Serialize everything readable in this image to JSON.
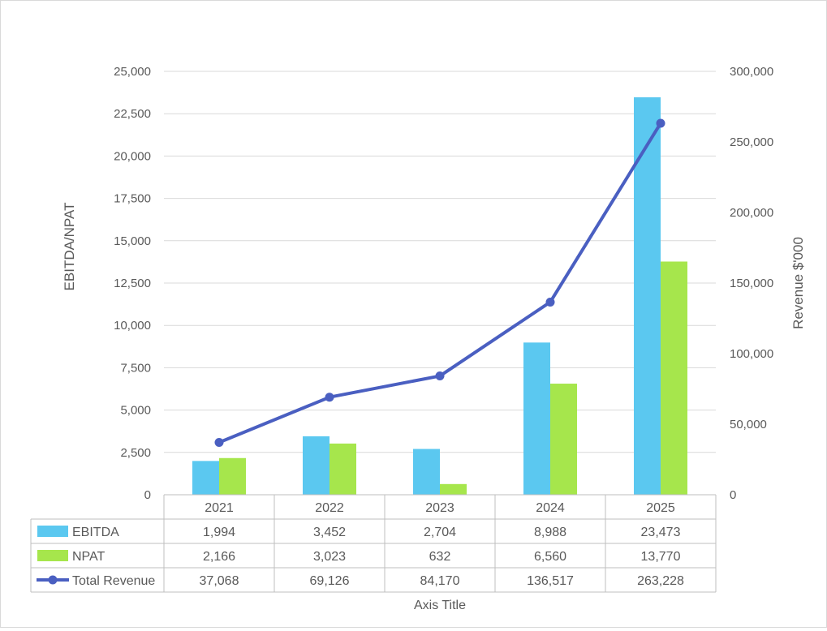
{
  "chart_data": {
    "type": "bar",
    "categories": [
      "2021",
      "2022",
      "2023",
      "2024",
      "2025"
    ],
    "series": [
      {
        "name": "EBITDA",
        "kind": "bar",
        "axis": "left",
        "color": "#5bc8f0",
        "values": [
          1994,
          3452,
          2704,
          8988,
          23473
        ],
        "labels": [
          "1,994",
          "3,452",
          "2,704",
          "8,988",
          "23,473"
        ]
      },
      {
        "name": "NPAT",
        "kind": "bar",
        "axis": "left",
        "color": "#a6e64c",
        "values": [
          2166,
          3023,
          632,
          6560,
          13770
        ],
        "labels": [
          "2,166",
          "3,023",
          "632",
          "6,560",
          "13,770"
        ]
      },
      {
        "name": "Total Revenue",
        "kind": "line",
        "axis": "right",
        "color": "#4a5fc1",
        "values": [
          37068,
          69126,
          84170,
          136517,
          263228
        ],
        "labels": [
          "37,068",
          "69,126",
          "84,170",
          "136,517",
          "263,228"
        ]
      }
    ],
    "ylabel": "EBITDA/NPAT",
    "y2label": "Revenue $'000",
    "xlabel": "Axis Title",
    "ylim": [
      0,
      25000
    ],
    "y2lim": [
      0,
      300000
    ],
    "yticks": [
      "0",
      "2,500",
      "5,000",
      "7,500",
      "10,000",
      "12,500",
      "15,000",
      "17,500",
      "20,000",
      "22,500",
      "25,000"
    ],
    "y2ticks": [
      "0",
      "50,000",
      "100,000",
      "150,000",
      "200,000",
      "250,000",
      "300,000"
    ],
    "grid": true,
    "legend": "data-table"
  }
}
